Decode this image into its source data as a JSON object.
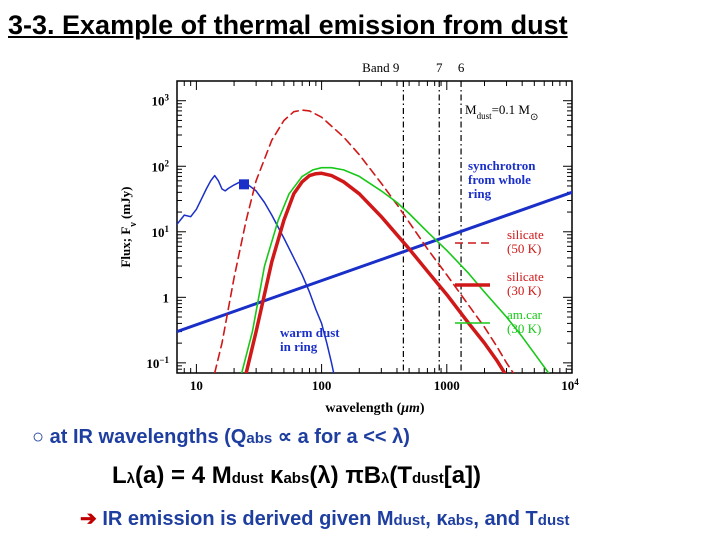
{
  "slide": {
    "title": "3-3. Example of thermal emission from dust "
  },
  "chart_data": {
    "type": "line",
    "xlabel_a": "wavelength (",
    "xlabel_unit": "μm",
    "xlabel_b": ")",
    "ylabel_a": "Flux; F",
    "ylabel_sub": "ν",
    "ylabel_b": " (mJy)",
    "xscale": "log",
    "yscale": "log",
    "xlim": [
      7,
      10000
    ],
    "ylim": [
      0.07,
      2000
    ],
    "xticks": [
      {
        "value": 10,
        "label": "10"
      },
      {
        "value": 100,
        "label": "100"
      },
      {
        "value": 1000,
        "label": "1000"
      }
    ],
    "xtick_last": {
      "base": "10",
      "exp": "4"
    },
    "yticks": [
      {
        "value": 0.1,
        "base": "10",
        "exp": "−1"
      },
      {
        "value": 1,
        "base": "1",
        "exp": ""
      },
      {
        "value": 10,
        "base": "10",
        "exp": "1"
      },
      {
        "value": 100,
        "base": "10",
        "exp": "2"
      },
      {
        "value": 1000,
        "base": "10",
        "exp": "3"
      }
    ],
    "bands": [
      {
        "label": "Band 9",
        "x": 450
      },
      {
        "label": "7",
        "x": 870
      },
      {
        "label": "6",
        "x": 1300
      }
    ],
    "mass_label_a": "M",
    "mass_label_sub": "dust",
    "mass_label_b": "=0.1 M",
    "mass_label_sun": "⊙",
    "series": [
      {
        "name": "synchrotron from whole ring",
        "label_lines": [
          "synchrotron",
          "from whole",
          "ring"
        ],
        "color": "#1a2fc8",
        "dash": "",
        "width": 3,
        "points": [
          [
            7,
            0.3
          ],
          [
            10000,
            40
          ]
        ]
      },
      {
        "name": "warm dust in ring",
        "label_lines": [
          "warm dust",
          "in ring"
        ],
        "color": "#1a2fc8",
        "dash": "",
        "width": 1.5,
        "points": [
          [
            7,
            13
          ],
          [
            8,
            18
          ],
          [
            9,
            17
          ],
          [
            10,
            22
          ],
          [
            11,
            32
          ],
          [
            12,
            45
          ],
          [
            13,
            60
          ],
          [
            14,
            72
          ],
          [
            15,
            60
          ],
          [
            16,
            45
          ],
          [
            17,
            42
          ],
          [
            18,
            46
          ],
          [
            20,
            52
          ],
          [
            22,
            57
          ],
          [
            25,
            55
          ],
          [
            30,
            42
          ],
          [
            35,
            28
          ],
          [
            40,
            18
          ],
          [
            50,
            8
          ],
          [
            60,
            4
          ],
          [
            70,
            2.2
          ],
          [
            80,
            1.2
          ],
          [
            90,
            0.65
          ],
          [
            100,
            0.4
          ],
          [
            110,
            0.2
          ],
          [
            120,
            0.1
          ],
          [
            125,
            0.07
          ]
        ]
      },
      {
        "name": "silicate (50 K)",
        "label_lines": [
          "silicate",
          "(50 K)"
        ],
        "color": "#d01818",
        "dash": "8,5",
        "width": 1.6,
        "points": [
          [
            14,
            0.07
          ],
          [
            16,
            0.2
          ],
          [
            20,
            2
          ],
          [
            25,
            15
          ],
          [
            30,
            60
          ],
          [
            40,
            250
          ],
          [
            50,
            500
          ],
          [
            60,
            680
          ],
          [
            70,
            720
          ],
          [
            80,
            700
          ],
          [
            100,
            560
          ],
          [
            150,
            280
          ],
          [
            200,
            150
          ],
          [
            300,
            55
          ],
          [
            400,
            26
          ],
          [
            500,
            14
          ],
          [
            700,
            5.5
          ],
          [
            1000,
            2.2
          ],
          [
            1500,
            0.75
          ],
          [
            2000,
            0.35
          ],
          [
            2500,
            0.18
          ],
          [
            3000,
            0.1
          ],
          [
            3400,
            0.07
          ]
        ]
      },
      {
        "name": "silicate (30 K)",
        "label_lines": [
          "silicate",
          "(30 K)"
        ],
        "color": "#d01818",
        "dash": "",
        "width": 3.5,
        "points": [
          [
            25,
            0.07
          ],
          [
            30,
            0.3
          ],
          [
            40,
            3.5
          ],
          [
            50,
            15
          ],
          [
            60,
            38
          ],
          [
            70,
            58
          ],
          [
            80,
            72
          ],
          [
            90,
            77
          ],
          [
            100,
            78
          ],
          [
            120,
            72
          ],
          [
            150,
            58
          ],
          [
            200,
            38
          ],
          [
            300,
            17
          ],
          [
            400,
            9
          ],
          [
            500,
            5.5
          ],
          [
            700,
            2.5
          ],
          [
            1000,
            1.1
          ],
          [
            1500,
            0.4
          ],
          [
            2000,
            0.2
          ],
          [
            2500,
            0.11
          ],
          [
            2900,
            0.07
          ]
        ]
      },
      {
        "name": "am.car (30 K)",
        "label_lines": [
          "am.car",
          "(30 K)"
        ],
        "color": "#18c818",
        "dash": "",
        "width": 1.6,
        "points": [
          [
            23,
            0.07
          ],
          [
            28,
            0.3
          ],
          [
            35,
            3
          ],
          [
            45,
            15
          ],
          [
            55,
            38
          ],
          [
            70,
            70
          ],
          [
            85,
            88
          ],
          [
            100,
            95
          ],
          [
            120,
            95
          ],
          [
            150,
            88
          ],
          [
            200,
            70
          ],
          [
            300,
            42
          ],
          [
            400,
            28
          ],
          [
            500,
            19
          ],
          [
            700,
            10
          ],
          [
            1000,
            5.2
          ],
          [
            1500,
            2.3
          ],
          [
            2000,
            1.2
          ],
          [
            3000,
            0.5
          ],
          [
            4000,
            0.25
          ],
          [
            5000,
            0.14
          ],
          [
            6500,
            0.07
          ]
        ]
      }
    ],
    "markers": [
      {
        "x": 24,
        "y": 53,
        "color": "#1a2fc8"
      }
    ]
  },
  "text": {
    "line1_a": "○ at IR wavelengths (Q",
    "line1_sub": "abs",
    "line1_b": " ∝ a for a << λ)",
    "line2_a": "L",
    "line2_sub1": "λ",
    "line2_b": "(a) = 4 M",
    "line2_sub2": "dust",
    "line2_c": " κ",
    "line2_sub3": "abs",
    "line2_d": "(λ) πB",
    "line2_sub4": "λ",
    "line2_e": "(T",
    "line2_sub5": "dust",
    "line2_f": "[a])",
    "line3_arrow": "➔",
    "line3_a": " IR emission is derived given M",
    "line3_sub1": "dust",
    "line3_b": ", κ",
    "line3_sub2": "abs",
    "line3_c": ", and T",
    "line3_sub3": "dust"
  }
}
